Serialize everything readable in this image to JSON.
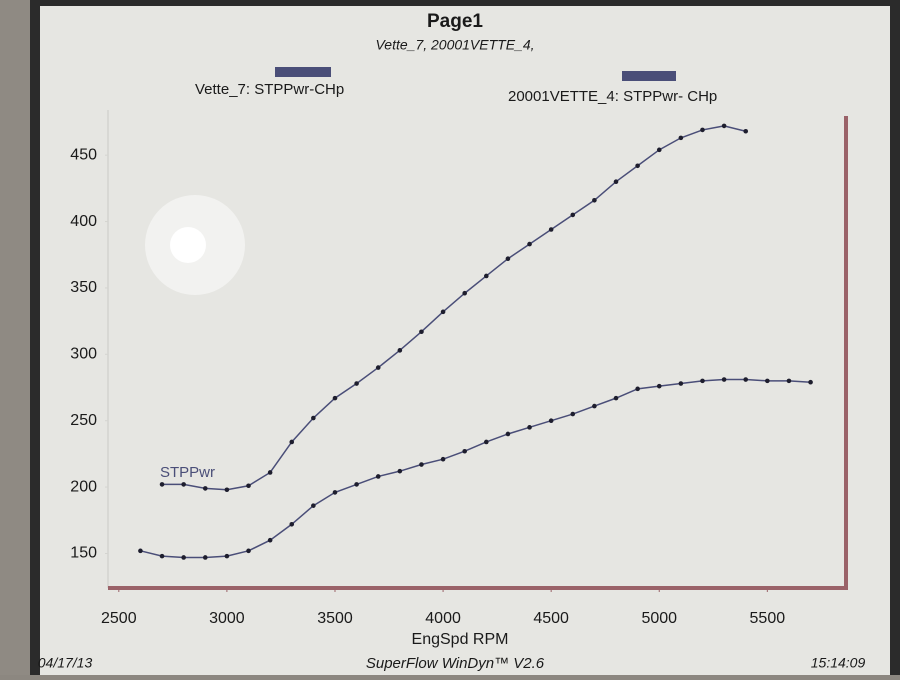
{
  "chart_data": {
    "type": "line",
    "title": "Page1",
    "subtitle": "Vette_7, 20001VETTE_4,",
    "x_label": "EngSpd RPM",
    "annotation": "STPPwr",
    "footer_left": "04/17/13",
    "footer_center": "SuperFlow WinDyn™ V2.6",
    "footer_right": "15:14:09",
    "xlim": [
      2450,
      5850
    ],
    "ylim": [
      124,
      484
    ],
    "xticks": [
      2500,
      3000,
      3500,
      4000,
      4500,
      5000,
      5500
    ],
    "yticks": [
      150,
      200,
      250,
      300,
      350,
      400,
      450
    ],
    "series": [
      {
        "name": "Vette_7: STPPwr-CHp",
        "color": "#4a4e78",
        "x": [
          2700,
          2800,
          2900,
          3000,
          3100,
          3200,
          3300,
          3400,
          3500,
          3600,
          3700,
          3800,
          3900,
          4000,
          4100,
          4200,
          4300,
          4400,
          4500,
          4600,
          4700,
          4800,
          4900,
          5000,
          5100,
          5200,
          5300,
          5400
        ],
        "values": [
          202,
          202,
          199,
          198,
          201,
          211,
          234,
          252,
          267,
          278,
          290,
          303,
          317,
          332,
          346,
          359,
          372,
          383,
          394,
          405,
          416,
          430,
          442,
          454,
          463,
          469,
          472,
          468
        ]
      },
      {
        "name": "20001VETTE_4: STPPwr- CHp",
        "color": "#4a4e78",
        "x": [
          2600,
          2700,
          2800,
          2900,
          3000,
          3100,
          3200,
          3300,
          3400,
          3500,
          3600,
          3700,
          3800,
          3900,
          4000,
          4100,
          4200,
          4300,
          4400,
          4500,
          4600,
          4700,
          4800,
          4900,
          5000,
          5100,
          5200,
          5300,
          5400,
          5500,
          5600,
          5700
        ],
        "values": [
          152,
          148,
          147,
          147,
          148,
          152,
          160,
          172,
          186,
          196,
          202,
          208,
          212,
          217,
          221,
          227,
          234,
          240,
          245,
          250,
          255,
          261,
          267,
          274,
          276,
          278,
          280,
          281,
          281,
          280,
          280,
          279
        ]
      }
    ]
  }
}
